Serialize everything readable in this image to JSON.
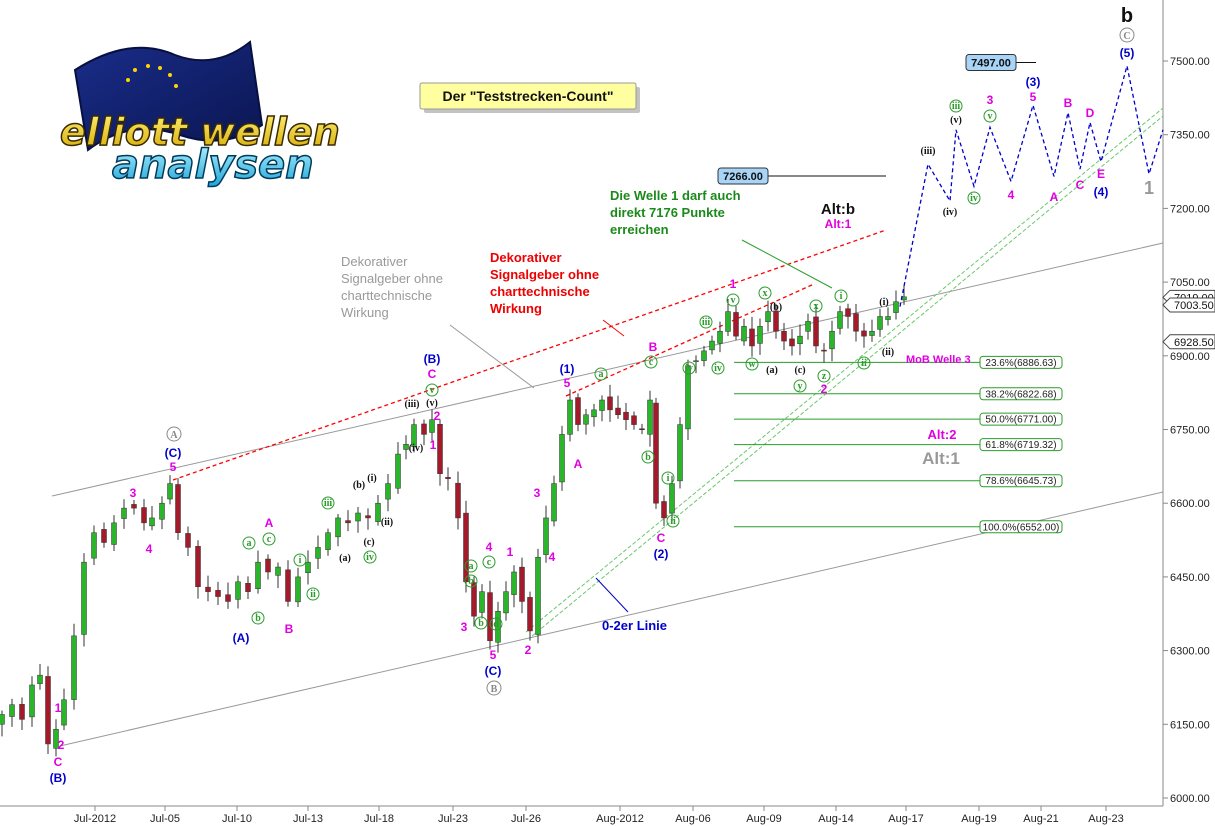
{
  "chart_data": {
    "type": "candlestick",
    "title": "Der \"Teststrecken-Count\"",
    "ylim": [
      5990,
      7590
    ],
    "x_ticks": [
      "Jul-2012",
      "Jul-05",
      "Jul-10",
      "Jul-13",
      "Jul-18",
      "Jul-23",
      "Jul-26",
      "Aug-2012",
      "Aug-06",
      "Aug-09",
      "Aug-14",
      "Aug-17",
      "Aug-19",
      "Aug-21",
      "Aug-23"
    ],
    "y_ticks": [
      6000,
      6150,
      6300,
      6450,
      6600,
      6750,
      6900,
      7050,
      7200,
      7350,
      7500
    ],
    "price_tags": [
      {
        "label": "7019.00",
        "value": 7019,
        "color": "#ffffff"
      },
      {
        "label": "7003.50",
        "value": 7003.5,
        "color": "#ffffff"
      },
      {
        "label": "6928.50",
        "value": 6928.5,
        "color": "#ffffff"
      }
    ],
    "targets": [
      {
        "label": "7497.00",
        "value": 7497
      },
      {
        "label": "7266.00",
        "value": 7266
      }
    ],
    "fib_levels": [
      {
        "label": "23.6%(6886.63)",
        "value": 6886.63
      },
      {
        "label": "38.2%(6822.68)",
        "value": 6822.68
      },
      {
        "label": "50.0%(6771.00)",
        "value": 6771.0
      },
      {
        "label": "61.8%(6719.32)",
        "value": 6719.32
      },
      {
        "label": "78.6%(6645.73)",
        "value": 6645.73
      },
      {
        "label": "100.0%(6552.00)",
        "value": 6552.0
      }
    ],
    "projection": [
      7015,
      7290,
      7215,
      7360,
      7245,
      7410,
      7265,
      7395,
      7275,
      7490,
      7270,
      7360
    ],
    "annotations": {
      "note_green": [
        "Die Welle 1 darf auch",
        "direkt 7176 Punkte",
        "erreichen"
      ],
      "note_red": [
        "Dekorativer",
        "Signalgeber ohne",
        "charttechnische",
        "Wirkung"
      ],
      "note_gray": [
        "Dekorativer",
        "Signalgeber ohne",
        "charttechnische",
        "Wirkung"
      ],
      "line_label": "0-2er Linie",
      "mob_label": "MoB Welle 3",
      "alt_b": "Alt:b",
      "alt_1_magenta": "Alt:1",
      "alt_2": "Alt:2",
      "alt_1_gray": "Alt:1",
      "big_b": "b",
      "gray_1": "1"
    },
    "colors": {
      "up": "#2bb52b",
      "down": "#a31a2a",
      "green_channel": "#7fd67f",
      "red_trend": "#ff0000",
      "projection": "#0000cc",
      "magenta": "#e000e0",
      "blue": "#0000cc",
      "fib": "#2a9d2a",
      "target_box": "#a8d4f7"
    }
  }
}
